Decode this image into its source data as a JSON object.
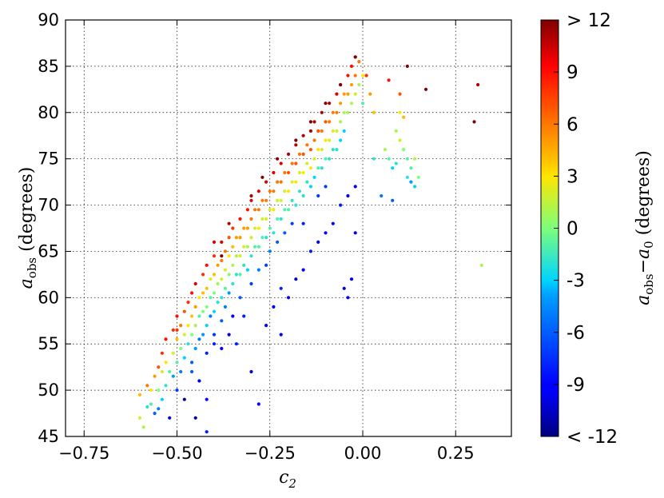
{
  "chart_data": {
    "type": "scatter",
    "title": "",
    "xlabel": {
      "main": "c",
      "sub": "2"
    },
    "ylabel": {
      "main": "a",
      "sub": "obs",
      "rest": " (degrees)"
    },
    "xlim": [
      -0.8,
      0.4
    ],
    "ylim": [
      45,
      90
    ],
    "xticks": [
      -0.75,
      -0.5,
      -0.25,
      0.0,
      0.25
    ],
    "xtick_labels": [
      "−0.75",
      "−0.50",
      "−0.25",
      "0.00",
      "0.25"
    ],
    "yticks": [
      45,
      50,
      55,
      60,
      65,
      70,
      75,
      80,
      85,
      90
    ],
    "ytick_labels": [
      "45",
      "50",
      "55",
      "60",
      "65",
      "70",
      "75",
      "80",
      "85",
      "90"
    ],
    "grid": true,
    "colormap": "jet",
    "color_range": [
      -12,
      12
    ],
    "colorbar_ticks": [
      12,
      9,
      6,
      3,
      0,
      -3,
      -6,
      -9,
      -12
    ],
    "colorbar_tick_labels": [
      "> 12",
      "9",
      "6",
      "3",
      "0",
      "-3",
      "-6",
      "-9",
      "< -12"
    ],
    "colorbar_label": {
      "a": "a",
      "a_sub": "obs",
      "minus": "−",
      "b": "a",
      "b_sub": "0",
      "rest": " (degrees)"
    },
    "points": [
      [
        -0.6,
        47,
        2
      ],
      [
        -0.6,
        49.5,
        4
      ],
      [
        -0.59,
        46,
        1
      ],
      [
        -0.58,
        50.5,
        6
      ],
      [
        -0.58,
        48.2,
        -2
      ],
      [
        -0.57,
        48.5,
        -1
      ],
      [
        -0.57,
        50,
        3
      ],
      [
        -0.56,
        51.5,
        5
      ],
      [
        -0.56,
        47.5,
        -6
      ],
      [
        -0.55,
        52.5,
        7
      ],
      [
        -0.55,
        50,
        0
      ],
      [
        -0.55,
        48,
        -5
      ],
      [
        -0.54,
        54,
        8
      ],
      [
        -0.54,
        52,
        2
      ],
      [
        -0.54,
        49,
        -3
      ],
      [
        -0.53,
        55.5,
        9
      ],
      [
        -0.53,
        53,
        3
      ],
      [
        -0.53,
        50.5,
        -2
      ],
      [
        -0.52,
        52,
        -1
      ],
      [
        -0.52,
        47,
        -10
      ],
      [
        -0.51,
        56.5,
        8
      ],
      [
        -0.51,
        54,
        2
      ],
      [
        -0.51,
        51.5,
        -4
      ],
      [
        -0.5,
        58,
        9
      ],
      [
        -0.5,
        55.5,
        4
      ],
      [
        -0.5,
        53,
        -1
      ],
      [
        -0.5,
        50,
        -7
      ],
      [
        -0.49,
        57,
        6
      ],
      [
        -0.49,
        54.5,
        0
      ],
      [
        -0.49,
        52,
        -5
      ],
      [
        -0.48,
        58.5,
        7
      ],
      [
        -0.48,
        56,
        2
      ],
      [
        -0.48,
        53.5,
        -3
      ],
      [
        -0.48,
        49,
        -12
      ],
      [
        -0.47,
        59.5,
        8
      ],
      [
        -0.47,
        57,
        3
      ],
      [
        -0.47,
        55,
        -2
      ],
      [
        -0.46,
        60.5,
        9
      ],
      [
        -0.46,
        58,
        4
      ],
      [
        -0.46,
        56,
        0
      ],
      [
        -0.46,
        53,
        -6
      ],
      [
        -0.45,
        61.5,
        10
      ],
      [
        -0.45,
        59,
        5
      ],
      [
        -0.45,
        57,
        1
      ],
      [
        -0.45,
        54.5,
        -4
      ],
      [
        -0.44,
        60,
        3
      ],
      [
        -0.44,
        58,
        -1
      ],
      [
        -0.44,
        55.5,
        -5
      ],
      [
        -0.43,
        62.5,
        8
      ],
      [
        -0.43,
        60.5,
        4
      ],
      [
        -0.43,
        58.5,
        0
      ],
      [
        -0.43,
        56,
        -4
      ],
      [
        -0.42,
        63.5,
        9
      ],
      [
        -0.42,
        61,
        4
      ],
      [
        -0.42,
        59,
        0
      ],
      [
        -0.42,
        57,
        -3
      ],
      [
        -0.42,
        54,
        -8
      ],
      [
        -0.41,
        62,
        2
      ],
      [
        -0.41,
        60,
        -1
      ],
      [
        -0.41,
        58,
        -5
      ],
      [
        -0.4,
        64.5,
        8
      ],
      [
        -0.4,
        62.5,
        4
      ],
      [
        -0.4,
        60.5,
        0
      ],
      [
        -0.4,
        58.5,
        -3
      ],
      [
        -0.4,
        56,
        -7
      ],
      [
        -0.39,
        63.5,
        5
      ],
      [
        -0.39,
        61.5,
        1
      ],
      [
        -0.39,
        59.5,
        -2
      ],
      [
        -0.38,
        66,
        10
      ],
      [
        -0.38,
        64,
        6
      ],
      [
        -0.38,
        62,
        2
      ],
      [
        -0.38,
        60,
        -2
      ],
      [
        -0.38,
        57.5,
        -6
      ],
      [
        -0.37,
        65,
        6
      ],
      [
        -0.37,
        63,
        2
      ],
      [
        -0.37,
        61,
        -1
      ],
      [
        -0.37,
        59,
        -5
      ],
      [
        -0.36,
        66.5,
        7
      ],
      [
        -0.36,
        64.5,
        3
      ],
      [
        -0.36,
        62.5,
        0
      ],
      [
        -0.36,
        60.5,
        -4
      ],
      [
        -0.35,
        67.5,
        8
      ],
      [
        -0.35,
        65.5,
        4
      ],
      [
        -0.35,
        63.5,
        1
      ],
      [
        -0.35,
        61.5,
        -2
      ],
      [
        -0.35,
        58,
        -9
      ],
      [
        -0.34,
        66.5,
        5
      ],
      [
        -0.34,
        64.5,
        1
      ],
      [
        -0.34,
        62.5,
        -2
      ],
      [
        -0.33,
        68.5,
        9
      ],
      [
        -0.33,
        66.5,
        5
      ],
      [
        -0.33,
        64.5,
        2
      ],
      [
        -0.33,
        62.5,
        -1
      ],
      [
        -0.33,
        60,
        -6
      ],
      [
        -0.32,
        67.5,
        5
      ],
      [
        -0.32,
        65.5,
        2
      ],
      [
        -0.32,
        63.5,
        -2
      ],
      [
        -0.31,
        69.5,
        9
      ],
      [
        -0.31,
        67.5,
        5
      ],
      [
        -0.31,
        65.5,
        1
      ],
      [
        -0.31,
        63,
        -3
      ],
      [
        -0.3,
        70.5,
        10
      ],
      [
        -0.3,
        68.5,
        6
      ],
      [
        -0.3,
        66.5,
        2
      ],
      [
        -0.3,
        64.5,
        -2
      ],
      [
        -0.3,
        61.5,
        -7
      ],
      [
        -0.29,
        69.5,
        6
      ],
      [
        -0.29,
        67.5,
        2
      ],
      [
        -0.29,
        65.5,
        -1
      ],
      [
        -0.28,
        71.5,
        10
      ],
      [
        -0.28,
        69.5,
        6
      ],
      [
        -0.28,
        67.5,
        3
      ],
      [
        -0.28,
        65.5,
        -1
      ],
      [
        -0.28,
        63,
        -5
      ],
      [
        -0.27,
        70.5,
        6
      ],
      [
        -0.27,
        68.5,
        2
      ],
      [
        -0.27,
        66.5,
        -1
      ],
      [
        -0.26,
        72.5,
        10
      ],
      [
        -0.26,
        70.5,
        6
      ],
      [
        -0.26,
        68.5,
        2
      ],
      [
        -0.26,
        66.5,
        -2
      ],
      [
        -0.26,
        63.5,
        -7
      ],
      [
        -0.25,
        71.5,
        6
      ],
      [
        -0.25,
        69.5,
        2
      ],
      [
        -0.25,
        67.5,
        -1
      ],
      [
        -0.25,
        65,
        -5
      ],
      [
        -0.24,
        73.5,
        10
      ],
      [
        -0.24,
        71.5,
        6
      ],
      [
        -0.24,
        69.5,
        3
      ],
      [
        -0.24,
        67,
        -2
      ],
      [
        -0.23,
        72.5,
        6
      ],
      [
        -0.23,
        70.5,
        2
      ],
      [
        -0.23,
        68.5,
        -1
      ],
      [
        -0.23,
        66,
        -6
      ],
      [
        -0.22,
        74.5,
        10
      ],
      [
        -0.22,
        72.5,
        6
      ],
      [
        -0.22,
        70.5,
        2
      ],
      [
        -0.22,
        68.5,
        -2
      ],
      [
        -0.21,
        73.5,
        6
      ],
      [
        -0.21,
        71.5,
        2
      ],
      [
        -0.21,
        69.5,
        -1
      ],
      [
        -0.21,
        67,
        -6
      ],
      [
        -0.2,
        75.5,
        11
      ],
      [
        -0.2,
        73.5,
        7
      ],
      [
        -0.2,
        71.5,
        3
      ],
      [
        -0.2,
        69.5,
        -1
      ],
      [
        -0.19,
        74.5,
        6
      ],
      [
        -0.19,
        72.5,
        2
      ],
      [
        -0.19,
        70.5,
        -2
      ],
      [
        -0.19,
        68,
        -7
      ],
      [
        -0.18,
        76.5,
        11
      ],
      [
        -0.18,
        74.5,
        7
      ],
      [
        -0.18,
        72.5,
        3
      ],
      [
        -0.18,
        70,
        -2
      ],
      [
        -0.17,
        75.5,
        6
      ],
      [
        -0.17,
        73.5,
        2
      ],
      [
        -0.17,
        71.5,
        -2
      ],
      [
        -0.16,
        77.5,
        11
      ],
      [
        -0.16,
        75.5,
        7
      ],
      [
        -0.16,
        73.5,
        3
      ],
      [
        -0.16,
        71,
        -2
      ],
      [
        -0.16,
        68,
        -8
      ],
      [
        -0.15,
        76.5,
        6
      ],
      [
        -0.15,
        74.5,
        2
      ],
      [
        -0.15,
        72.5,
        -2
      ],
      [
        -0.14,
        78,
        11
      ],
      [
        -0.14,
        76,
        7
      ],
      [
        -0.14,
        74,
        3
      ],
      [
        -0.14,
        72,
        -3
      ],
      [
        -0.13,
        79,
        11
      ],
      [
        -0.13,
        77,
        6
      ],
      [
        -0.13,
        75,
        2
      ],
      [
        -0.13,
        73,
        -3
      ],
      [
        -0.12,
        78,
        7
      ],
      [
        -0.12,
        76,
        3
      ],
      [
        -0.12,
        74,
        -1
      ],
      [
        -0.12,
        71,
        -7
      ],
      [
        -0.11,
        80,
        11
      ],
      [
        -0.11,
        78,
        6
      ],
      [
        -0.11,
        76,
        2
      ],
      [
        -0.11,
        74,
        -2
      ],
      [
        -0.1,
        79,
        7
      ],
      [
        -0.1,
        77,
        3
      ],
      [
        -0.1,
        75,
        -1
      ],
      [
        -0.1,
        72,
        -7
      ],
      [
        -0.09,
        81,
        11
      ],
      [
        -0.09,
        79,
        6
      ],
      [
        -0.09,
        77,
        2
      ],
      [
        -0.09,
        75,
        -2
      ],
      [
        -0.08,
        80,
        6
      ],
      [
        -0.08,
        78,
        2
      ],
      [
        -0.08,
        76,
        -2
      ],
      [
        -0.07,
        82,
        10
      ],
      [
        -0.07,
        80,
        6
      ],
      [
        -0.07,
        78,
        2
      ],
      [
        -0.07,
        76,
        -2
      ],
      [
        -0.06,
        83,
        9
      ],
      [
        -0.06,
        81,
        5
      ],
      [
        -0.06,
        79,
        1
      ],
      [
        -0.06,
        77,
        -3
      ],
      [
        -0.05,
        82,
        5
      ],
      [
        -0.05,
        80,
        1
      ],
      [
        -0.05,
        78,
        -3
      ],
      [
        -0.04,
        84,
        9
      ],
      [
        -0.04,
        82,
        5
      ],
      [
        -0.04,
        80,
        1
      ],
      [
        -0.03,
        85,
        9
      ],
      [
        -0.03,
        83,
        5
      ],
      [
        -0.03,
        81,
        1
      ],
      [
        -0.02,
        86,
        11
      ],
      [
        -0.02,
        84,
        6
      ],
      [
        -0.02,
        82,
        2
      ],
      [
        -0.01,
        85.5,
        6
      ],
      [
        -0.01,
        83,
        1
      ],
      [
        0.0,
        84,
        3
      ],
      [
        0.0,
        81,
        -1
      ],
      [
        -0.5,
        56.5,
        8
      ],
      [
        -0.46,
        52,
        -6
      ],
      [
        -0.44,
        51,
        -10
      ],
      [
        -0.42,
        49,
        -9
      ],
      [
        -0.4,
        55,
        -8
      ],
      [
        -0.38,
        54.5,
        -9
      ],
      [
        -0.36,
        56,
        -10
      ],
      [
        -0.34,
        55,
        -8
      ],
      [
        -0.32,
        58,
        -8
      ],
      [
        -0.3,
        52,
        -10
      ],
      [
        -0.28,
        48.5,
        -9
      ],
      [
        -0.26,
        57,
        -9
      ],
      [
        -0.24,
        59,
        -9
      ],
      [
        -0.22,
        61,
        -8
      ],
      [
        -0.2,
        60,
        -9
      ],
      [
        -0.18,
        62,
        -10
      ],
      [
        -0.16,
        63,
        -9
      ],
      [
        -0.14,
        65,
        -8
      ],
      [
        -0.12,
        66,
        -10
      ],
      [
        -0.1,
        67,
        -9
      ],
      [
        -0.08,
        68,
        -10
      ],
      [
        -0.06,
        70,
        -8
      ],
      [
        -0.04,
        71,
        -9
      ],
      [
        -0.02,
        72,
        -9
      ],
      [
        -0.4,
        66,
        10
      ],
      [
        -0.36,
        68,
        11
      ],
      [
        -0.3,
        71,
        11
      ],
      [
        -0.27,
        73,
        12
      ],
      [
        -0.23,
        75,
        12
      ],
      [
        -0.18,
        77,
        12
      ],
      [
        -0.14,
        79,
        12
      ],
      [
        -0.1,
        81,
        12
      ],
      [
        -0.06,
        83,
        12
      ],
      [
        -0.02,
        86,
        12
      ],
      [
        -0.05,
        61,
        -10
      ],
      [
        -0.04,
        60,
        -9
      ],
      [
        -0.03,
        62,
        -10
      ],
      [
        -0.02,
        67,
        -10
      ],
      [
        -0.38,
        64.5,
        12
      ],
      [
        -0.22,
        56,
        -9
      ],
      [
        -0.42,
        45.5,
        -8
      ],
      [
        -0.45,
        47,
        -11
      ],
      [
        0.06,
        76,
        1
      ],
      [
        0.07,
        75,
        -1
      ],
      [
        0.08,
        74,
        -3
      ],
      [
        0.09,
        78,
        1
      ],
      [
        0.1,
        77,
        2
      ],
      [
        0.11,
        79.5,
        4
      ],
      [
        0.1,
        80,
        3
      ],
      [
        0.12,
        75,
        -1
      ],
      [
        0.13,
        74,
        -1
      ],
      [
        0.13,
        72.5,
        -4
      ],
      [
        0.14,
        72,
        -3
      ],
      [
        0.12,
        73,
        -2
      ],
      [
        0.08,
        70.5,
        -6
      ],
      [
        0.09,
        74.5,
        -2
      ],
      [
        0.11,
        76,
        0
      ],
      [
        0.14,
        75,
        1
      ],
      [
        0.15,
        73,
        0
      ],
      [
        0.03,
        75,
        -2
      ],
      [
        0.05,
        71,
        -5
      ],
      [
        0.01,
        84,
        8
      ],
      [
        0.02,
        82,
        5
      ],
      [
        0.03,
        80,
        4
      ],
      [
        0.07,
        83.5,
        9
      ],
      [
        0.1,
        82,
        7
      ],
      [
        0.12,
        85,
        12
      ],
      [
        0.17,
        82.5,
        12
      ],
      [
        0.3,
        79,
        12
      ],
      [
        0.31,
        83,
        11
      ],
      [
        0.32,
        63.5,
        1
      ]
    ]
  }
}
